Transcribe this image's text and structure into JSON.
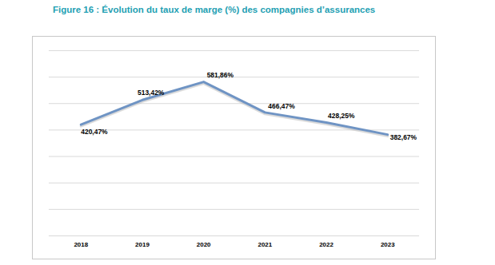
{
  "chart_data": {
    "type": "line",
    "title": "Figure 16 : Évolution du taux de marge (%) des compagnies d’assurances",
    "categories": [
      "2018",
      "2019",
      "2020",
      "2021",
      "2022",
      "2023"
    ],
    "values": [
      420.47,
      513.42,
      581.86,
      466.47,
      428.25,
      382.67
    ],
    "value_labels": [
      "420,47%",
      "513,42%",
      "581,86%",
      "466,47%",
      "428,25%",
      "382,67%"
    ],
    "color": "#6f94c4",
    "ylim": [
      0,
      700
    ],
    "yticks": [
      0,
      100,
      200,
      300,
      400,
      500,
      600,
      700
    ],
    "grid": true,
    "tick_labels": "x",
    "data_labels": true
  }
}
